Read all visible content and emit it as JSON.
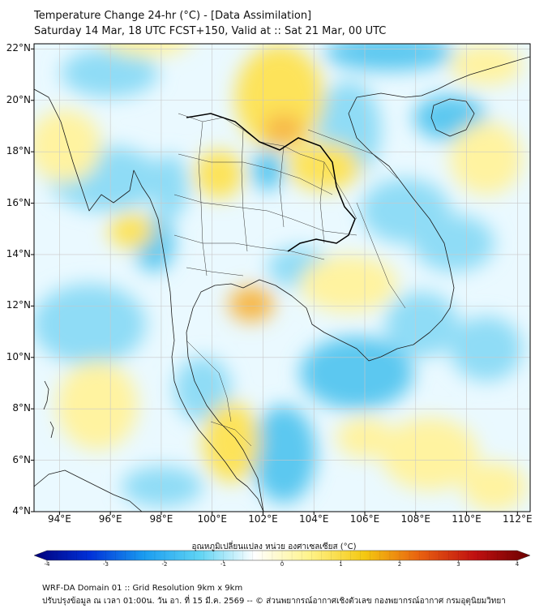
{
  "title_line1": "Temperature Change 24-hr (°C) - [Data Assimilation]",
  "title_line2": "Saturday 14 Mar, 18 UTC FCST+150, Valid at :: Sat 21 Mar, 00 UTC",
  "lat_labels": [
    "22°N",
    "20°N",
    "18°N",
    "16°N",
    "14°N",
    "12°N",
    "10°N",
    "8°N",
    "6°N",
    "4°N"
  ],
  "lat_values": [
    22,
    20,
    18,
    16,
    14,
    12,
    10,
    8,
    6,
    4
  ],
  "lon_labels": [
    "94°E",
    "96°E",
    "98°E",
    "100°E",
    "102°E",
    "104°E",
    "106°E",
    "108°E",
    "110°E",
    "112°E"
  ],
  "lon_values": [
    94,
    96,
    98,
    100,
    102,
    104,
    106,
    108,
    110,
    112
  ],
  "map_extent": {
    "lon_min": 93,
    "lon_max": 112.5,
    "lat_min": 4,
    "lat_max": 22.2
  },
  "colorbar": {
    "title": "อุณหภูมิเปลี่ยนแปลง หน่วย องศาเซลเซียส (°C)",
    "ticks": [
      "-4",
      "-3",
      "-2",
      "-1",
      "0",
      "1",
      "2",
      "3",
      "4"
    ],
    "min": -4,
    "max": 4,
    "colors": [
      "#00007a",
      "#0030d8",
      "#1a9cf0",
      "#5fd4f4",
      "#ffffff",
      "#fff38a",
      "#f4c810",
      "#e86010",
      "#c01010",
      "#6a0000"
    ]
  },
  "footer_line1": "WRF-DA Domain 01 :: Grid Resolution 9km x 9km",
  "footer_line2": "ปรับปรุงข้อมูล ณ เวลา 01:00น. วัน อา. ที่ 15 มี.ค. 2569 -- © ส่วนพยากรณ์อากาศเชิงตัวเลข กองพยากรณ์อากาศ กรมอุตุนิยมวิทยา",
  "field_colors": {
    "warm_light": "#fff3a0",
    "warm": "#fde35a",
    "warm_strong": "#f7b84a",
    "cool_light": "#bfefff",
    "cool": "#8fdcf6",
    "cool_strong": "#5cc8f0"
  }
}
